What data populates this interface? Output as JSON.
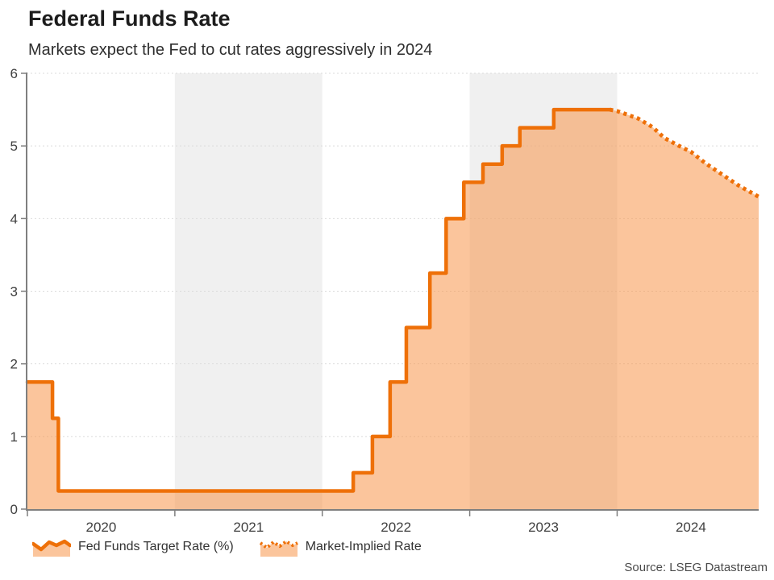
{
  "header": {
    "title": "Federal Funds Rate",
    "subtitle": "Markets expect the Fed to cut rates aggressively in 2024"
  },
  "source": "Source: LSEG Datastream",
  "legend": [
    {
      "label": "Fed Funds Target Rate (%)",
      "style": "solid-area"
    },
    {
      "label": "Market-Implied Rate",
      "style": "dotted-area"
    }
  ],
  "colors": {
    "line": "#EE7008",
    "fill": "#F8964A",
    "fill_opacity": 0.55,
    "band": "#F0F0F0",
    "grid": "#DBDBDB",
    "axis": "#7F7F7F",
    "tick_text": "#404040"
  },
  "chart_data": {
    "type": "area",
    "subtype": "step-area with dotted forecast line",
    "title": "Federal Funds Rate",
    "xlabel": "",
    "ylabel": "",
    "x_domain": [
      2020,
      2024.96
    ],
    "ylim": [
      0,
      6
    ],
    "y_ticks": [
      0,
      1,
      2,
      3,
      4,
      5,
      6
    ],
    "x_tick_boundaries": [
      2020,
      2021,
      2022,
      2023,
      2024
    ],
    "x_tick_labels": [
      {
        "label": "2020",
        "x": 2020.5
      },
      {
        "label": "2021",
        "x": 2021.5
      },
      {
        "label": "2022",
        "x": 2022.5
      },
      {
        "label": "2023",
        "x": 2023.5
      },
      {
        "label": "2024",
        "x": 2024.5
      }
    ],
    "bands": [
      [
        2021,
        2022
      ],
      [
        2023,
        2024
      ]
    ],
    "grid": "dashed-horizontal",
    "legend_position": "bottom-left",
    "series": [
      {
        "name": "Fed Funds Target Rate (%)",
        "style": "step",
        "points": [
          [
            2020.0,
            1.75
          ],
          [
            2020.17,
            1.25
          ],
          [
            2020.21,
            0.25
          ],
          [
            2022.21,
            0.5
          ],
          [
            2022.34,
            1.0
          ],
          [
            2022.46,
            1.75
          ],
          [
            2022.57,
            2.5
          ],
          [
            2022.73,
            3.25
          ],
          [
            2022.84,
            4.0
          ],
          [
            2022.96,
            4.5
          ],
          [
            2023.09,
            4.75
          ],
          [
            2023.22,
            5.0
          ],
          [
            2023.34,
            5.25
          ],
          [
            2023.57,
            5.5
          ],
          [
            2023.95,
            5.5
          ]
        ]
      },
      {
        "name": "Market-Implied Rate",
        "style": "dotted-line",
        "points": [
          [
            2023.95,
            5.5
          ],
          [
            2024.0,
            5.48
          ],
          [
            2024.14,
            5.38
          ],
          [
            2024.24,
            5.26
          ],
          [
            2024.32,
            5.11
          ],
          [
            2024.42,
            5.0
          ],
          [
            2024.5,
            4.92
          ],
          [
            2024.6,
            4.76
          ],
          [
            2024.71,
            4.61
          ],
          [
            2024.82,
            4.46
          ],
          [
            2024.96,
            4.3
          ]
        ]
      }
    ]
  }
}
